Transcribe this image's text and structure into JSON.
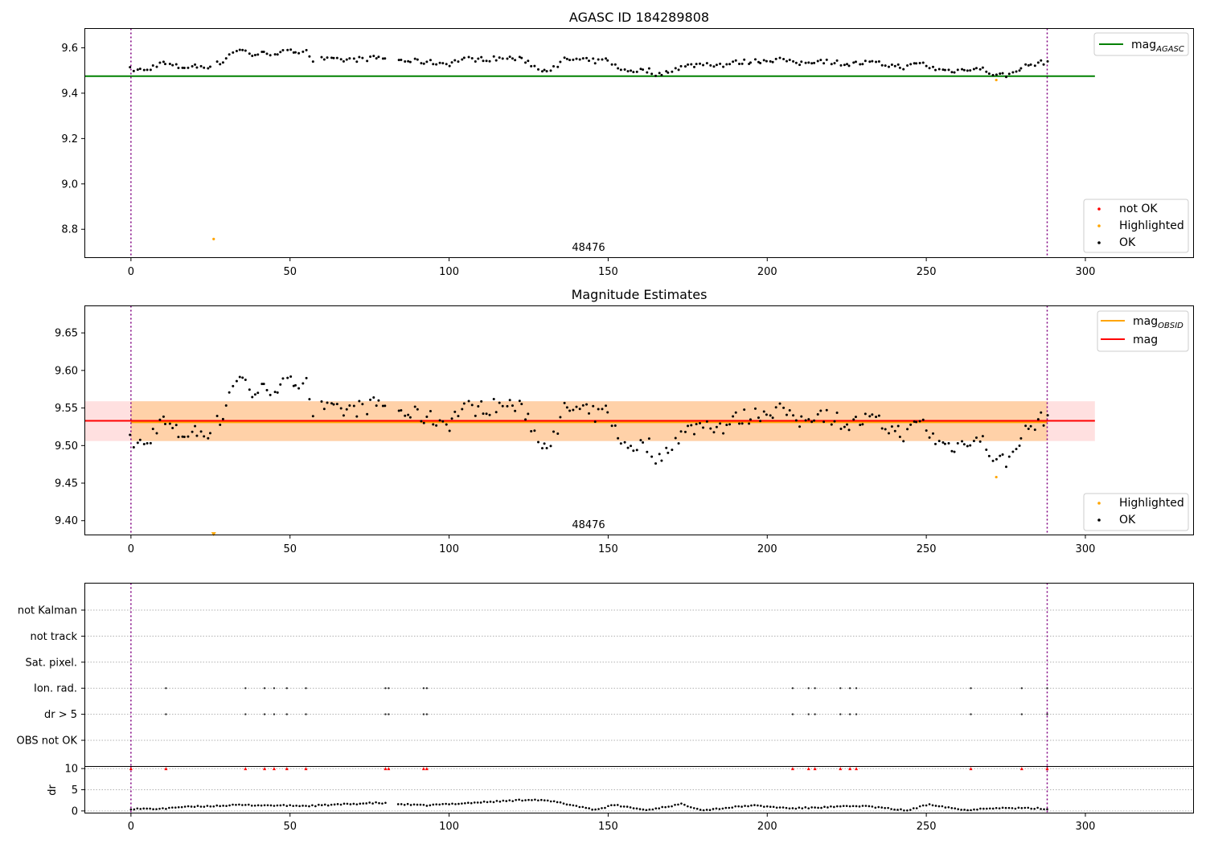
{
  "figure": {
    "title": "AGASC ID 184289808",
    "colors": {
      "black": "#000000",
      "green": "#008000",
      "orange": "#FFA500",
      "red": "#FF0000",
      "purple": "#800080",
      "grid": "#b0b0b0"
    }
  },
  "chart_data": [
    {
      "type": "scatter",
      "panel": "agasc",
      "title": "AGASC ID 184289808",
      "x_ticks": [
        0,
        50,
        100,
        150,
        200,
        250,
        300
      ],
      "y_ticks": [
        8.8,
        9.0,
        9.2,
        9.4,
        9.6
      ],
      "xlim": [
        -14.5,
        334
      ],
      "ylim": [
        8.675,
        9.685
      ],
      "annotation": "48476",
      "annotation_x": 144,
      "reference_lines": [
        {
          "name": "mag_AGASC",
          "value": 9.475,
          "color": "#008000",
          "x_range": [
            -14.5,
            303
          ]
        }
      ],
      "obs_boundaries": [
        0,
        288
      ],
      "highlighted_points": [
        {
          "x": 26,
          "y": 8.757
        },
        {
          "x": 272,
          "y": 9.458
        }
      ],
      "legend_lines": [
        {
          "label_main": "mag",
          "label_sub": "AGASC",
          "color": "#008000"
        }
      ],
      "legend_points": [
        {
          "label": "not OK",
          "color": "#FF0000"
        },
        {
          "label": "Highlighted",
          "color": "#FFA500"
        },
        {
          "label": "OK",
          "color": "#000000"
        }
      ]
    },
    {
      "type": "scatter",
      "panel": "estimates",
      "title": "Magnitude Estimates",
      "x_ticks": [
        0,
        50,
        100,
        150,
        200,
        250,
        300
      ],
      "y_ticks": [
        9.4,
        9.45,
        9.5,
        9.55,
        9.6,
        9.65
      ],
      "xlim": [
        -14.5,
        334
      ],
      "ylim": [
        9.381,
        9.686
      ],
      "annotation": "48476",
      "annotation_x": 144,
      "mag_obsid": 9.531,
      "mag": 9.533,
      "band_obsid": [
        9.506,
        9.559
      ],
      "band_mag": [
        9.506,
        9.559
      ],
      "band_obsid_x": [
        0,
        288
      ],
      "band_mag_x": [
        -14.5,
        303
      ],
      "obs_boundaries": [
        0,
        288
      ],
      "highlighted_points": [
        {
          "x": 272,
          "y": 9.458
        },
        {
          "x": 26,
          "y": 9.382,
          "marker": "triangle-down"
        }
      ],
      "legend_lines": [
        {
          "label_main": "mag",
          "label_sub": "OBSID",
          "color": "#FFA500"
        },
        {
          "label_main": "mag",
          "label_sub": "",
          "color": "#FF0000"
        }
      ],
      "legend_points": [
        {
          "label": "Highlighted",
          "color": "#FFA500"
        },
        {
          "label": "OK",
          "color": "#000000"
        }
      ]
    },
    {
      "type": "scatter",
      "panel": "flags",
      "categories": [
        "not Kalman",
        "not track",
        "Sat. pixel.",
        "Ion. rad.",
        "dr > 5",
        "OBS not OK"
      ],
      "flag_x": [
        11,
        36,
        42,
        45,
        49,
        55,
        80,
        81,
        92,
        93,
        208,
        213,
        215,
        223,
        226,
        228,
        264,
        280,
        288
      ],
      "flag_rows": [
        "Ion. rad.",
        "dr > 5"
      ],
      "xlim": [
        -14.5,
        334
      ],
      "obs_boundaries": [
        0,
        288
      ]
    },
    {
      "type": "scatter",
      "panel": "dr",
      "ylabel": "dr",
      "x_ticks": [
        0,
        50,
        100,
        150,
        200,
        250,
        300
      ],
      "y_ticks": [
        0,
        5,
        10
      ],
      "xlim": [
        -14.5,
        334
      ],
      "ylim": [
        -0.5,
        10.5
      ],
      "clipped_x": [
        0,
        11,
        36,
        42,
        45,
        49,
        55,
        80,
        81,
        92,
        93,
        208,
        213,
        215,
        223,
        226,
        228,
        264,
        280,
        288
      ],
      "clipped_value": 10,
      "obs_boundaries": [
        0,
        288
      ]
    }
  ]
}
